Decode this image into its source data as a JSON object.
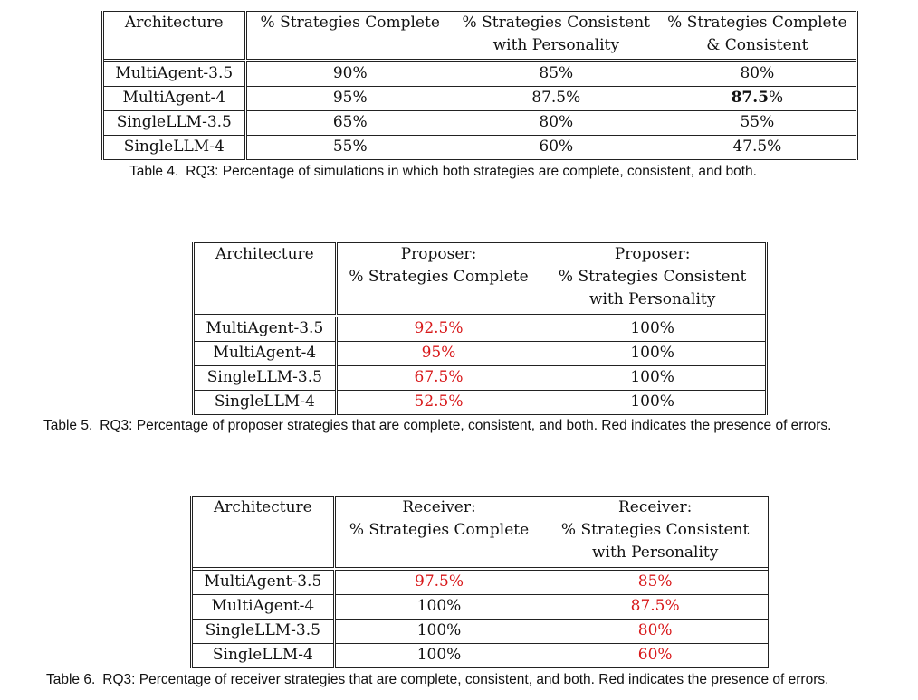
{
  "table4": {
    "headers": [
      "Architecture",
      "% Strategies Complete",
      "% Strategies Consistent",
      "with Personality",
      "% Strategies Complete",
      "& Consistent"
    ],
    "rows": [
      {
        "arch": "MultiAgent-3.5",
        "c1": "90%",
        "c2": "85%",
        "c3": "80%"
      },
      {
        "arch": "MultiAgent-4",
        "c1": "95%",
        "c2": "87.5%",
        "c3_bold": "87.5",
        "c3_suffix": "%"
      },
      {
        "arch": "SingleLLM-3.5",
        "c1": "65%",
        "c2": "80%",
        "c3": "55%"
      },
      {
        "arch": "SingleLLM-4",
        "c1": "55%",
        "c2": "60%",
        "c3": "47.5%"
      }
    ],
    "caption_label": "Table 4.",
    "caption_text": "RQ3: Percentage of simulations in which both strategies are complete, consistent, and both."
  },
  "table5": {
    "headers": [
      "Architecture",
      "Proposer:",
      "% Strategies Complete",
      "Proposer:",
      "% Strategies Consistent",
      "with Personality"
    ],
    "rows": [
      {
        "arch": "MultiAgent-3.5",
        "c1": "92.5%",
        "c2": "100%"
      },
      {
        "arch": "MultiAgent-4",
        "c1": "95%",
        "c2": "100%"
      },
      {
        "arch": "SingleLLM-3.5",
        "c1": "67.5%",
        "c2": "100%"
      },
      {
        "arch": "SingleLLM-4",
        "c1": "52.5%",
        "c2": "100%"
      }
    ],
    "caption_label": "Table 5.",
    "caption_text": "RQ3: Percentage of proposer strategies that are complete, consistent, and both. Red indicates the presence of errors."
  },
  "table6": {
    "headers": [
      "Architecture",
      "Receiver:",
      "% Strategies Complete",
      "Receiver:",
      "% Strategies Consistent",
      "with Personality"
    ],
    "rows": [
      {
        "arch": "MultiAgent-3.5",
        "c1": "97.5%",
        "c2": "85%"
      },
      {
        "arch": "MultiAgent-4",
        "c1": "100%",
        "c2": "87.5%"
      },
      {
        "arch": "SingleLLM-3.5",
        "c1": "100%",
        "c2": "80%"
      },
      {
        "arch": "SingleLLM-4",
        "c1": "100%",
        "c2": "60%"
      }
    ],
    "caption_label": "Table 6.",
    "caption_text": "RQ3: Percentage of receiver strategies that are complete, consistent, and both. Red indicates the presence of errors."
  },
  "colors": {
    "error_red": "#d8181a",
    "text": "#111111",
    "rule": "#222222"
  }
}
